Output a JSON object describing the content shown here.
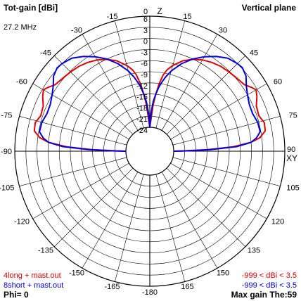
{
  "header": {
    "y_title": "Tot-gain [dBi]",
    "plane_title": "Vertical plane",
    "frequency": "27.2 MHz",
    "axis_label_z": "Z",
    "axis_label_xy": "XY"
  },
  "footer": {
    "phi": "Phi= 0",
    "max_gain": "Max gain The:59"
  },
  "colors": {
    "red": "#e00000",
    "blue": "#0000dd",
    "grid": "#000000",
    "background": "#ffffff"
  },
  "chart_data": {
    "type": "polar",
    "angle_unit": "degrees (theta from zenith)",
    "radial_unit": "dBi",
    "radial_ticks": [
      "6",
      "3",
      "0",
      "-3",
      "-6",
      "-9",
      "-12",
      "-15",
      "-18",
      "-21",
      "-24"
    ],
    "radial_range": [
      -24,
      6
    ],
    "angle_ticks": [
      "-180",
      "-165",
      "-150",
      "-135",
      "-120",
      "-105",
      "-90",
      "-75",
      "-60",
      "-45",
      "-30",
      "-15",
      "0",
      "15",
      "30",
      "45",
      "60",
      "75",
      "90",
      "105",
      "120",
      "135",
      "150",
      "165"
    ],
    "grid": true,
    "legend_placement": "bottom",
    "series": [
      {
        "name": "4long + mast.out",
        "color": "#e00000",
        "range_label": "-999 < dBi < 3.5",
        "symmetric": true,
        "points": [
          [
            0,
            -24
          ],
          [
            2,
            -22
          ],
          [
            4,
            -18
          ],
          [
            6,
            -15
          ],
          [
            8,
            -12
          ],
          [
            10,
            -9.5
          ],
          [
            12,
            -8
          ],
          [
            15,
            -6.5
          ],
          [
            20,
            -4.5
          ],
          [
            25,
            -3.1
          ],
          [
            30,
            -2
          ],
          [
            35,
            -1.2
          ],
          [
            40,
            -0.6
          ],
          [
            45,
            -0.2
          ],
          [
            50,
            0.2
          ],
          [
            55,
            0.8
          ],
          [
            58,
            2
          ],
          [
            60,
            2.7
          ],
          [
            63,
            2
          ],
          [
            67,
            0.8
          ],
          [
            72,
            0.5
          ],
          [
            76,
            1.4
          ],
          [
            80,
            1.2
          ],
          [
            83,
            -0.5
          ],
          [
            85,
            -3
          ],
          [
            87,
            -8
          ],
          [
            88.5,
            -15
          ],
          [
            89.5,
            -22
          ],
          [
            90,
            -24
          ]
        ]
      },
      {
        "name": "8short + mast.out",
        "color": "#0000dd",
        "range_label": "-999 < dBi < 3.5",
        "symmetric": true,
        "points": [
          [
            0,
            -24
          ],
          [
            2,
            -20
          ],
          [
            4,
            -17
          ],
          [
            6,
            -15
          ],
          [
            8,
            -13
          ],
          [
            10,
            -11.5
          ],
          [
            12,
            -10
          ],
          [
            15,
            -8
          ],
          [
            20,
            -5.3
          ],
          [
            25,
            -3
          ],
          [
            30,
            -1
          ],
          [
            35,
            0.8
          ],
          [
            40,
            2.3
          ],
          [
            45,
            3
          ],
          [
            48,
            3.2
          ],
          [
            52,
            2.5
          ],
          [
            56,
            1
          ],
          [
            60,
            0
          ],
          [
            65,
            -0.8
          ],
          [
            70,
            -0.9
          ],
          [
            75,
            -0.3
          ],
          [
            80,
            -0.2
          ],
          [
            83,
            -1.5
          ],
          [
            85,
            -3
          ],
          [
            87,
            -7
          ],
          [
            88.5,
            -14
          ],
          [
            89.5,
            -21
          ],
          [
            90,
            -24
          ]
        ]
      }
    ]
  }
}
